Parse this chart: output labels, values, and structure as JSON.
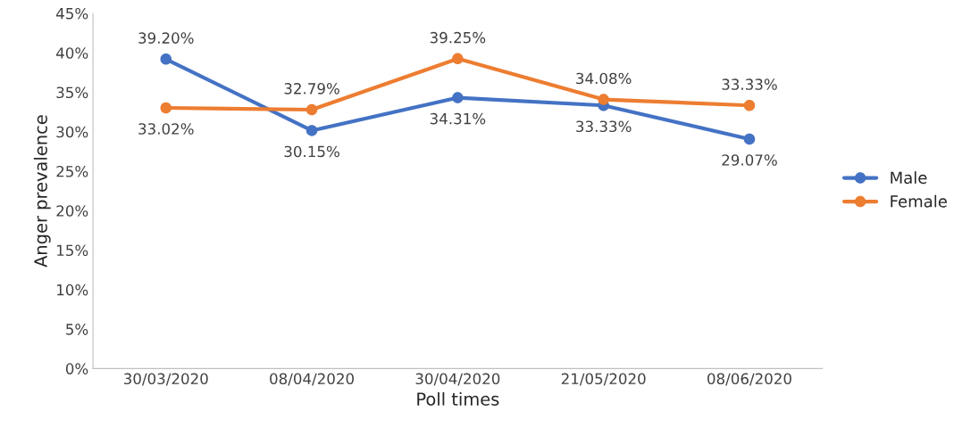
{
  "chart_data": {
    "type": "line",
    "xlabel": "Poll times",
    "ylabel": "Anger prevalence",
    "categories": [
      "30/03/2020",
      "08/04/2020",
      "30/04/2020",
      "21/05/2020",
      "08/06/2020"
    ],
    "series": [
      {
        "name": "Male",
        "color": "#4472c4",
        "values": [
          39.2,
          30.15,
          34.31,
          33.33,
          29.07
        ],
        "value_labels": [
          "39.20%",
          "30.15%",
          "34.31%",
          "33.33%",
          "29.07%"
        ]
      },
      {
        "name": "Female",
        "color": "#ed7d31",
        "values": [
          33.02,
          32.79,
          39.25,
          34.08,
          33.33
        ],
        "value_labels": [
          "33.02%",
          "32.79%",
          "39.25%",
          "34.08%",
          "33.33%"
        ]
      }
    ],
    "ylim": [
      0,
      45
    ],
    "yticks": [
      {
        "value": 0,
        "label": "0%"
      },
      {
        "value": 5,
        "label": "5%"
      },
      {
        "value": 10,
        "label": "10%"
      },
      {
        "value": 15,
        "label": "15%"
      },
      {
        "value": 20,
        "label": "20%"
      },
      {
        "value": 25,
        "label": "25%"
      },
      {
        "value": 30,
        "label": "30%"
      },
      {
        "value": 35,
        "label": "35%"
      },
      {
        "value": 40,
        "label": "40%"
      },
      {
        "value": 45,
        "label": "45%"
      }
    ],
    "grid": false,
    "legend": "right",
    "marker": "circle",
    "line_style": "solid"
  }
}
